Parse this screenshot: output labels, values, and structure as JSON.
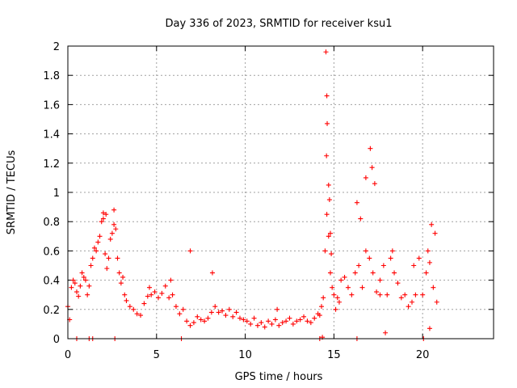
{
  "chart_data": {
    "type": "scatter",
    "title": "Day 336 of 2023, SRMTID for receiver ksu1",
    "xlabel": "GPS time / hours",
    "ylabel": "SRMTID / TECUs",
    "xlim": [
      0,
      24
    ],
    "ylim": [
      0,
      2
    ],
    "x_ticks": [
      0,
      5,
      10,
      15,
      20
    ],
    "x_tick_labels": [
      "0",
      "5",
      "10",
      "15",
      "20"
    ],
    "y_ticks": [
      0,
      0.2,
      0.4,
      0.6,
      0.8,
      1,
      1.2,
      1.4,
      1.6,
      1.8,
      2
    ],
    "y_tick_labels": [
      "0",
      "0.2",
      "0.4",
      "0.6",
      "0.8",
      "1",
      "1.2",
      "1.4",
      "1.6",
      "1.8",
      "2"
    ],
    "grid": true,
    "marker": "plus",
    "series_color": "#ff0000",
    "series": [
      {
        "name": "SRMTID",
        "x": [
          0.0,
          0.1,
          0.2,
          0.3,
          0.4,
          0.5,
          0.6,
          0.7,
          0.8,
          0.9,
          1.0,
          1.1,
          1.2,
          1.3,
          1.4,
          1.5,
          1.6,
          1.7,
          1.8,
          1.9,
          2.0,
          2.1,
          2.2,
          2.3,
          2.4,
          2.5,
          2.6,
          2.7,
          2.8,
          2.9,
          3.0,
          3.1,
          3.2,
          3.3,
          3.5,
          3.7,
          3.9,
          4.1,
          4.3,
          4.5,
          4.7,
          4.9,
          5.1,
          5.3,
          5.5,
          5.7,
          5.9,
          6.1,
          6.3,
          6.5,
          6.7,
          6.9,
          7.1,
          7.3,
          7.5,
          7.7,
          7.9,
          8.1,
          8.3,
          8.5,
          8.7,
          8.9,
          9.1,
          9.3,
          9.5,
          9.7,
          9.9,
          10.1,
          10.3,
          10.5,
          10.7,
          10.9,
          11.1,
          11.3,
          11.5,
          11.7,
          11.9,
          12.1,
          12.3,
          12.5,
          12.7,
          12.9,
          13.1,
          13.3,
          13.5,
          13.7,
          13.9,
          14.1,
          14.2,
          14.3,
          14.4,
          14.5,
          14.6,
          14.7,
          14.8,
          14.9,
          15.0,
          15.2,
          15.4,
          15.6,
          15.8,
          16.0,
          16.2,
          16.4,
          16.6,
          16.8,
          17.0,
          17.2,
          17.4,
          17.6,
          17.8,
          18.0,
          18.2,
          18.4,
          18.6,
          18.8,
          19.0,
          19.2,
          19.4,
          19.6,
          19.8,
          20.0,
          20.2,
          20.4,
          20.6,
          20.8,
          14.55,
          14.6,
          14.62,
          14.58,
          14.7,
          14.75,
          14.8,
          14.85,
          16.3,
          16.5,
          16.8,
          17.05,
          17.15,
          17.3,
          2.0,
          2.15,
          2.6,
          8.15,
          0.5,
          1.2,
          1.4,
          2.65,
          6.4,
          14.2,
          16.3,
          20.05,
          20.4,
          17.9,
          14.35,
          15.1,
          15.3,
          17.6,
          18.3,
          19.5,
          20.3,
          20.5,
          20.7,
          6.9,
          4.6,
          5.8,
          11.8
        ],
        "y": [
          0.22,
          0.13,
          0.35,
          0.4,
          0.38,
          0.32,
          0.29,
          0.36,
          0.45,
          0.42,
          0.4,
          0.3,
          0.36,
          0.5,
          0.55,
          0.62,
          0.6,
          0.66,
          0.7,
          0.8,
          0.82,
          0.58,
          0.48,
          0.55,
          0.68,
          0.72,
          0.78,
          0.75,
          0.55,
          0.45,
          0.38,
          0.42,
          0.3,
          0.26,
          0.22,
          0.2,
          0.17,
          0.16,
          0.24,
          0.29,
          0.3,
          0.32,
          0.28,
          0.31,
          0.36,
          0.28,
          0.3,
          0.22,
          0.17,
          0.2,
          0.12,
          0.09,
          0.11,
          0.15,
          0.13,
          0.12,
          0.14,
          0.18,
          0.22,
          0.18,
          0.19,
          0.16,
          0.2,
          0.15,
          0.18,
          0.14,
          0.13,
          0.12,
          0.1,
          0.14,
          0.09,
          0.11,
          0.08,
          0.12,
          0.1,
          0.13,
          0.09,
          0.11,
          0.12,
          0.14,
          0.1,
          0.12,
          0.13,
          0.15,
          0.12,
          0.11,
          0.14,
          0.17,
          0.16,
          0.22,
          0.28,
          0.6,
          0.85,
          0.7,
          0.45,
          0.35,
          0.3,
          0.28,
          0.4,
          0.42,
          0.35,
          0.3,
          0.45,
          0.5,
          0.35,
          0.6,
          0.55,
          0.45,
          0.32,
          0.4,
          0.5,
          0.3,
          0.55,
          0.45,
          0.38,
          0.28,
          0.3,
          0.22,
          0.25,
          0.3,
          0.55,
          0.3,
          0.45,
          0.52,
          0.35,
          0.25,
          1.96,
          1.66,
          1.47,
          1.25,
          1.05,
          0.95,
          0.72,
          0.58,
          0.93,
          0.82,
          1.1,
          1.3,
          1.17,
          1.06,
          0.86,
          0.85,
          0.88,
          0.45,
          0.0,
          0.0,
          0.0,
          0.0,
          0.0,
          0.0,
          0.0,
          0.0,
          0.07,
          0.04,
          0.01,
          0.2,
          0.25,
          0.3,
          0.6,
          0.5,
          0.6,
          0.78,
          0.72,
          0.6,
          0.35,
          0.4,
          0.2
        ]
      }
    ]
  }
}
